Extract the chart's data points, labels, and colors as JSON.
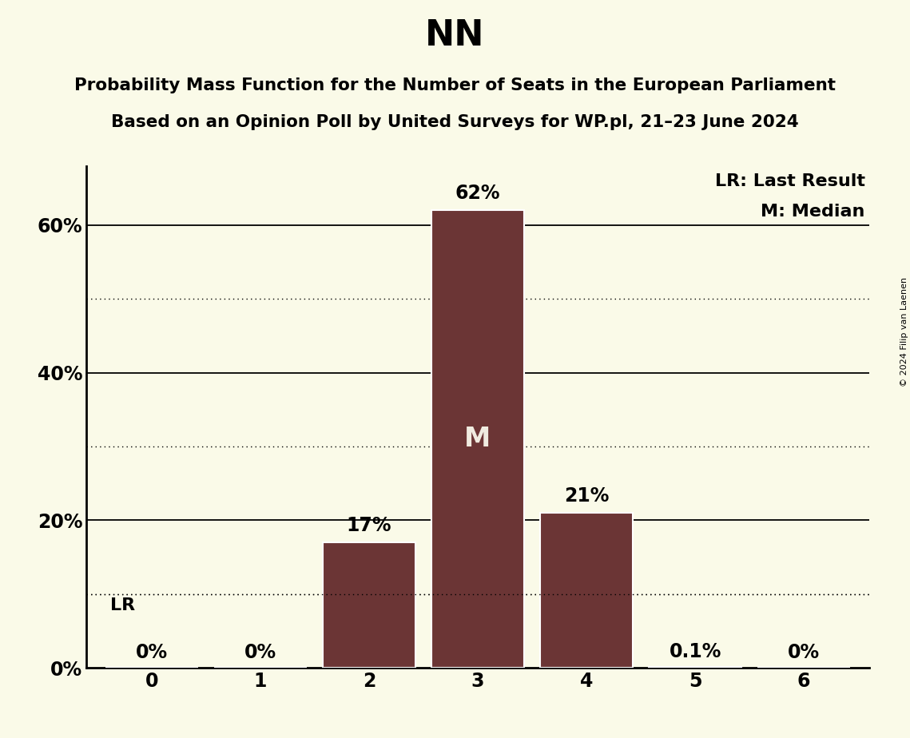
{
  "title": "NN",
  "subtitle_line1": "Probability Mass Function for the Number of Seats in the European Parliament",
  "subtitle_line2": "Based on an Opinion Poll by United Surveys for WP.pl, 21–23 June 2024",
  "copyright": "© 2024 Filip van Laenen",
  "categories": [
    0,
    1,
    2,
    3,
    4,
    5,
    6
  ],
  "values": [
    0.0,
    0.0,
    17.0,
    62.0,
    21.0,
    0.1,
    0.0
  ],
  "bar_color": "#6b3535",
  "background_color": "#fafae8",
  "median_seat": 3,
  "lr_value": 10.0,
  "legend_lr": "LR: Last Result",
  "legend_m": "M: Median",
  "yticks_solid": [
    20,
    40,
    60
  ],
  "yticks_dotted": [
    10,
    30,
    50
  ],
  "ylim": [
    0,
    68
  ],
  "bar_labels": [
    "0%",
    "0%",
    "17%",
    "62%",
    "21%",
    "0.1%",
    "0%"
  ],
  "title_fontsize": 32,
  "subtitle_fontsize": 15.5,
  "tick_fontsize": 17,
  "label_fontsize": 16,
  "bar_label_fontsize": 17,
  "m_fontsize": 24,
  "copyright_fontsize": 8
}
